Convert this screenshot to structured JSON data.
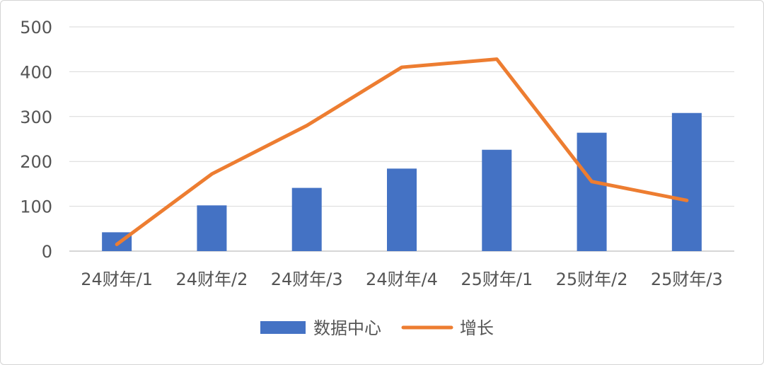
{
  "chart_data": {
    "type": "bar",
    "categories": [
      "24财年/1",
      "24财年/2",
      "24财年/3",
      "24财年/4",
      "25财年/1",
      "25财年/2",
      "25财年/3"
    ],
    "series": [
      {
        "name": "数据中心",
        "type": "bar",
        "color": "#4472C4",
        "values": [
          42,
          102,
          141,
          184,
          226,
          264,
          308
        ]
      },
      {
        "name": "增长",
        "type": "line",
        "color": "#ED7D31",
        "values": [
          15,
          172,
          280,
          410,
          428,
          155,
          113
        ]
      }
    ],
    "yticks": [
      0,
      100,
      200,
      300,
      400,
      500
    ],
    "ylim": [
      0,
      500
    ],
    "grid": true,
    "legend_position": "bottom"
  }
}
